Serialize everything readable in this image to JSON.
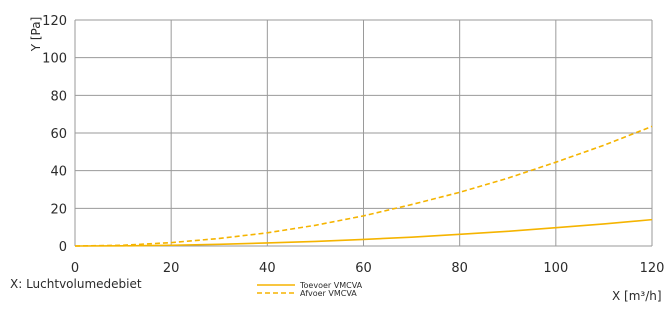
{
  "chart_data": {
    "type": "line",
    "title": "",
    "xlabel": "X [m³/h]",
    "ylabel": "Y [Pa]",
    "xlim": [
      0,
      120
    ],
    "ylim": [
      0,
      120
    ],
    "x_ticks": [
      0,
      20,
      40,
      60,
      80,
      100,
      120
    ],
    "y_ticks": [
      0,
      20,
      40,
      60,
      80,
      100,
      120
    ],
    "grid": true,
    "legend_position": "bottom-center",
    "series": [
      {
        "name": "Toevoer VMCVA",
        "style": "solid",
        "color": "#f5b400",
        "x": [
          0,
          10,
          20,
          30,
          40,
          50,
          60,
          70,
          80,
          90,
          100,
          110,
          120
        ],
        "y": [
          0,
          0.1,
          0.4,
          0.9,
          1.6,
          2.4,
          3.5,
          4.7,
          6.2,
          7.8,
          9.7,
          11.7,
          14
        ]
      },
      {
        "name": "Afvoer VMCVA",
        "style": "dashed",
        "color": "#f5b400",
        "x": [
          0,
          10,
          20,
          30,
          40,
          50,
          60,
          70,
          80,
          90,
          100,
          110,
          120
        ],
        "y": [
          0,
          0.4,
          1.8,
          4.0,
          7.0,
          11.0,
          16.0,
          22.0,
          28.5,
          36.0,
          44.5,
          53.5,
          63.5
        ]
      }
    ]
  },
  "footer": {
    "x_description": "X: Luchtvolumedebiet"
  }
}
